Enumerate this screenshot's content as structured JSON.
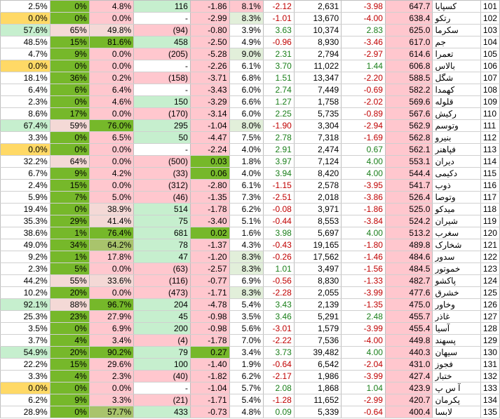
{
  "columns": [
    "pct_a",
    "pct_b",
    "pct_c",
    "count",
    "change",
    "pct_d",
    "delta",
    "volume",
    "ratio",
    "price",
    "name",
    "index"
  ],
  "colors": {
    "green_dark": "#76b82a",
    "green_light": "#c6efce",
    "red_light": "#ffc7ce",
    "yellow": "#ffd966",
    "olive": "#a9c46c",
    "pink_pale": "#f4d9d6",
    "green_pale": "#e2efda",
    "white": "#ffffff"
  },
  "rows": [
    {
      "cells": [
        "2.5%",
        "0%",
        "4.8%",
        "116",
        "-1.86",
        "8.1%",
        "-2.12",
        "2,631",
        "-3.98",
        "647.7",
        "کسپایا",
        "101"
      ],
      "fills": [
        "w",
        "gd",
        "r",
        "gl",
        "r",
        "r",
        "w",
        "w",
        "w",
        "r",
        "w",
        "w"
      ]
    },
    {
      "cells": [
        "0.0%",
        "0%",
        "0.0%",
        "-",
        "-2.99",
        "8.3%",
        "-1.01",
        "13,670",
        "-4.00",
        "638.4",
        "رتکو",
        "102"
      ],
      "fills": [
        "y",
        "gd",
        "r",
        "w",
        "r",
        "gp",
        "w",
        "w",
        "w",
        "r",
        "w",
        "w"
      ]
    },
    {
      "cells": [
        "57.6%",
        "65%",
        "49.8%",
        "(94)",
        "-0.80",
        "3.9%",
        "3.63",
        "10,374",
        "2.83",
        "625.0",
        "سکرما",
        "103"
      ],
      "fills": [
        "gl",
        "pp",
        "pp",
        "r",
        "r",
        "w",
        "w",
        "w",
        "w",
        "r",
        "w",
        "w"
      ]
    },
    {
      "cells": [
        "48.5%",
        "15%",
        "81.6%",
        "458",
        "-2.50",
        "4.9%",
        "-0.96",
        "8,930",
        "-3.46",
        "617.0",
        "جم",
        "104"
      ],
      "fills": [
        "w",
        "gd",
        "gd",
        "gl",
        "r",
        "w",
        "w",
        "w",
        "w",
        "r",
        "w",
        "w"
      ]
    },
    {
      "cells": [
        "4.7%",
        "9%",
        "0.0%",
        "(205)",
        "-5.28",
        "9.0%",
        "2.31",
        "2,794",
        "-2.97",
        "614.6",
        "تعمرا",
        "105"
      ],
      "fills": [
        "w",
        "gd",
        "r",
        "r",
        "r",
        "gp",
        "w",
        "w",
        "w",
        "r",
        "w",
        "w"
      ]
    },
    {
      "cells": [
        "0.0%",
        "0%",
        "0.0%",
        "-",
        "-2.26",
        "6.1%",
        "3.70",
        "11,022",
        "1.44",
        "606.8",
        "بالاس",
        "106"
      ],
      "fills": [
        "y",
        "gd",
        "r",
        "w",
        "r",
        "w",
        "w",
        "w",
        "w",
        "r",
        "w",
        "w"
      ]
    },
    {
      "cells": [
        "18.1%",
        "36%",
        "0.2%",
        "(158)",
        "-3.71",
        "6.8%",
        "1.51",
        "13,347",
        "-2.20",
        "588.5",
        "شگل",
        "107"
      ],
      "fills": [
        "w",
        "gd",
        "r",
        "r",
        "r",
        "w",
        "w",
        "w",
        "w",
        "r",
        "w",
        "w"
      ]
    },
    {
      "cells": [
        "6.4%",
        "6%",
        "6.4%",
        "-",
        "-3.43",
        "6.0%",
        "2.74",
        "7,449",
        "-0.69",
        "582.2",
        "کهمدا",
        "108"
      ],
      "fills": [
        "w",
        "gd",
        "r",
        "w",
        "r",
        "w",
        "w",
        "w",
        "w",
        "r",
        "w",
        "w"
      ]
    },
    {
      "cells": [
        "2.3%",
        "0%",
        "4.6%",
        "150",
        "-3.29",
        "6.6%",
        "1.27",
        "1,758",
        "-2.02",
        "569.6",
        "قلوله",
        "109"
      ],
      "fills": [
        "w",
        "gd",
        "r",
        "gl",
        "r",
        "w",
        "w",
        "w",
        "w",
        "r",
        "w",
        "w"
      ]
    },
    {
      "cells": [
        "8.6%",
        "17%",
        "0.0%",
        "(170)",
        "-3.14",
        "6.0%",
        "2.25",
        "5,735",
        "-0.89",
        "567.6",
        "رکیش",
        "110"
      ],
      "fills": [
        "w",
        "gd",
        "r",
        "r",
        "r",
        "w",
        "w",
        "w",
        "w",
        "r",
        "w",
        "w"
      ]
    },
    {
      "cells": [
        "67.4%",
        "59%",
        "76.0%",
        "295",
        "-1.04",
        "8.0%",
        "-1.90",
        "3,304",
        "-2.94",
        "562.9",
        "وتوسم",
        "111"
      ],
      "fills": [
        "gl",
        "pp",
        "gd",
        "gl",
        "r",
        "gp",
        "w",
        "w",
        "w",
        "r",
        "w",
        "w"
      ]
    },
    {
      "cells": [
        "3.3%",
        "0%",
        "6.5%",
        "50",
        "-4.47",
        "7.5%",
        "2.78",
        "7,318",
        "-1.69",
        "562.8",
        "بنیرو",
        "112"
      ],
      "fills": [
        "w",
        "gd",
        "r",
        "gl",
        "r",
        "w",
        "w",
        "w",
        "w",
        "r",
        "w",
        "w"
      ]
    },
    {
      "cells": [
        "0.0%",
        "0%",
        "0.0%",
        "-",
        "-2.24",
        "4.0%",
        "2.91",
        "2,474",
        "0.67",
        "562.1",
        "فپاهنر",
        "113"
      ],
      "fills": [
        "y",
        "gd",
        "r",
        "w",
        "r",
        "w",
        "w",
        "w",
        "w",
        "r",
        "w",
        "w"
      ]
    },
    {
      "cells": [
        "32.2%",
        "64%",
        "0.0%",
        "(500)",
        "0.03",
        "1.8%",
        "3.97",
        "7,124",
        "4.00",
        "553.1",
        "دیران",
        "114"
      ],
      "fills": [
        "w",
        "pp",
        "r",
        "r",
        "gd",
        "w",
        "w",
        "w",
        "w",
        "r",
        "w",
        "w"
      ]
    },
    {
      "cells": [
        "6.7%",
        "9%",
        "4.2%",
        "(33)",
        "0.06",
        "4.0%",
        "3.94",
        "8,420",
        "4.00",
        "544.4",
        "دکیمی",
        "115"
      ],
      "fills": [
        "w",
        "gd",
        "r",
        "r",
        "gd",
        "w",
        "w",
        "w",
        "w",
        "r",
        "w",
        "w"
      ]
    },
    {
      "cells": [
        "2.4%",
        "15%",
        "0.0%",
        "(312)",
        "-2.80",
        "6.1%",
        "-1.15",
        "2,578",
        "-3.95",
        "541.7",
        "ذوب",
        "116"
      ],
      "fills": [
        "w",
        "gd",
        "r",
        "r",
        "r",
        "w",
        "w",
        "w",
        "w",
        "r",
        "w",
        "w"
      ]
    },
    {
      "cells": [
        "5.9%",
        "7%",
        "5.0%",
        "(46)",
        "-1.35",
        "7.3%",
        "-2.51",
        "2,018",
        "-3.86",
        "526.4",
        "وتوصا",
        "117"
      ],
      "fills": [
        "w",
        "gd",
        "r",
        "r",
        "r",
        "w",
        "w",
        "w",
        "w",
        "r",
        "w",
        "w"
      ]
    },
    {
      "cells": [
        "19.4%",
        "0%",
        "38.9%",
        "514",
        "-1.78",
        "6.2%",
        "-0.08",
        "3,971",
        "-1.86",
        "525.0",
        "میدکو",
        "118"
      ],
      "fills": [
        "w",
        "gd",
        "pp",
        "gl",
        "r",
        "w",
        "w",
        "w",
        "w",
        "r",
        "w",
        "w"
      ]
    },
    {
      "cells": [
        "35.3%",
        "29%",
        "41.4%",
        "75",
        "-3.40",
        "5.1%",
        "-0.44",
        "8,553",
        "-3.84",
        "524.2",
        "شیران",
        "119"
      ],
      "fills": [
        "w",
        "gd",
        "pp",
        "gl",
        "r",
        "w",
        "w",
        "w",
        "w",
        "r",
        "w",
        "w"
      ]
    },
    {
      "cells": [
        "38.6%",
        "1%",
        "76.4%",
        "681",
        "0.02",
        "1.6%",
        "3.98",
        "5,697",
        "4.00",
        "513.2",
        "سغرب",
        "120"
      ],
      "fills": [
        "w",
        "gd",
        "gd",
        "gl",
        "gd",
        "w",
        "w",
        "w",
        "w",
        "r",
        "w",
        "w"
      ]
    },
    {
      "cells": [
        "49.0%",
        "34%",
        "64.2%",
        "78",
        "-1.37",
        "4.3%",
        "-0.43",
        "19,165",
        "-1.80",
        "489.8",
        "شخارک",
        "121"
      ],
      "fills": [
        "w",
        "gd",
        "ol",
        "gl",
        "r",
        "w",
        "w",
        "w",
        "w",
        "r",
        "w",
        "w"
      ]
    },
    {
      "cells": [
        "9.2%",
        "1%",
        "17.8%",
        "47",
        "-1.20",
        "8.3%",
        "-0.26",
        "17,562",
        "-1.46",
        "484.6",
        "سدور",
        "122"
      ],
      "fills": [
        "w",
        "gd",
        "r",
        "gl",
        "r",
        "gp",
        "w",
        "w",
        "w",
        "r",
        "w",
        "w"
      ]
    },
    {
      "cells": [
        "2.3%",
        "5%",
        "0.0%",
        "(63)",
        "-2.57",
        "8.3%",
        "1.01",
        "3,497",
        "-1.56",
        "484.5",
        "خموتور",
        "123"
      ],
      "fills": [
        "w",
        "gd",
        "r",
        "r",
        "r",
        "gp",
        "w",
        "w",
        "w",
        "r",
        "w",
        "w"
      ]
    },
    {
      "cells": [
        "44.2%",
        "55%",
        "33.6%",
        "(116)",
        "-0.77",
        "6.9%",
        "-0.56",
        "8,830",
        "-1.33",
        "482.7",
        "پاکشو",
        "124"
      ],
      "fills": [
        "w",
        "pp",
        "pp",
        "r",
        "r",
        "w",
        "w",
        "w",
        "w",
        "r",
        "w",
        "w"
      ]
    },
    {
      "cells": [
        "10.2%",
        "20%",
        "0.0%",
        "(473)",
        "-1.71",
        "8.3%",
        "-2.28",
        "2,055",
        "-3.99",
        "477.6",
        "خشرق",
        "125"
      ],
      "fills": [
        "w",
        "gd",
        "r",
        "r",
        "r",
        "gp",
        "w",
        "w",
        "w",
        "r",
        "w",
        "w"
      ]
    },
    {
      "cells": [
        "92.1%",
        "88%",
        "96.7%",
        "204",
        "-4.78",
        "5.4%",
        "3.43",
        "2,139",
        "-1.35",
        "475.0",
        "وخاور",
        "126"
      ],
      "fills": [
        "gl",
        "pp",
        "gd",
        "gl",
        "r",
        "w",
        "w",
        "w",
        "w",
        "r",
        "w",
        "w"
      ]
    },
    {
      "cells": [
        "25.3%",
        "23%",
        "27.9%",
        "45",
        "-0.98",
        "3.5%",
        "3.46",
        "5,291",
        "2.48",
        "455.7",
        "غاذر",
        "127"
      ],
      "fills": [
        "w",
        "gd",
        "r",
        "gl",
        "r",
        "w",
        "w",
        "w",
        "w",
        "r",
        "w",
        "w"
      ]
    },
    {
      "cells": [
        "3.5%",
        "0%",
        "6.9%",
        "200",
        "-0.98",
        "5.6%",
        "-3.01",
        "1,579",
        "-3.99",
        "455.4",
        "آسیا",
        "128"
      ],
      "fills": [
        "w",
        "gd",
        "r",
        "gl",
        "r",
        "w",
        "w",
        "w",
        "w",
        "r",
        "w",
        "w"
      ]
    },
    {
      "cells": [
        "3.7%",
        "4%",
        "3.4%",
        "(4)",
        "-1.78",
        "7.0%",
        "-2.22",
        "7,536",
        "-4.00",
        "449.8",
        "پسهند",
        "129"
      ],
      "fills": [
        "w",
        "gd",
        "r",
        "r",
        "r",
        "w",
        "w",
        "w",
        "w",
        "r",
        "w",
        "w"
      ]
    },
    {
      "cells": [
        "54.9%",
        "20%",
        "90.2%",
        "79",
        "0.27",
        "3.4%",
        "3.73",
        "39,482",
        "4.00",
        "440.3",
        "سیهان",
        "130"
      ],
      "fills": [
        "gl",
        "gd",
        "gd",
        "gl",
        "gd",
        "w",
        "w",
        "w",
        "w",
        "r",
        "w",
        "w"
      ]
    },
    {
      "cells": [
        "22.2%",
        "15%",
        "29.6%",
        "100",
        "-1.40",
        "1.9%",
        "-0.64",
        "6,542",
        "-2.04",
        "431.0",
        "فجوز",
        "131"
      ],
      "fills": [
        "w",
        "gd",
        "r",
        "gl",
        "r",
        "w",
        "w",
        "w",
        "w",
        "r",
        "w",
        "w"
      ]
    },
    {
      "cells": [
        "3.3%",
        "4%",
        "2.3%",
        "(40)",
        "-1.82",
        "6.2%",
        "-2.17",
        "1,986",
        "-3.99",
        "427.4",
        "ختبار",
        "132"
      ],
      "fills": [
        "w",
        "gd",
        "r",
        "r",
        "r",
        "w",
        "w",
        "w",
        "w",
        "r",
        "w",
        "w"
      ]
    },
    {
      "cells": [
        "0.0%",
        "0%",
        "0.0%",
        "-",
        "-1.04",
        "5.7%",
        "2.08",
        "1,868",
        "1.04",
        "423.9",
        "آ س پ",
        "133"
      ],
      "fills": [
        "y",
        "gd",
        "r",
        "w",
        "r",
        "w",
        "w",
        "w",
        "w",
        "r",
        "w",
        "w"
      ]
    },
    {
      "cells": [
        "6.2%",
        "9%",
        "3.3%",
        "(21)",
        "-1.71",
        "5.4%",
        "-1.28",
        "11,652",
        "-2.99",
        "420.7",
        "پکرمان",
        "134"
      ],
      "fills": [
        "w",
        "gd",
        "r",
        "r",
        "r",
        "w",
        "w",
        "w",
        "w",
        "r",
        "w",
        "w"
      ]
    },
    {
      "cells": [
        "28.9%",
        "0%",
        "57.7%",
        "433",
        "-0.73",
        "4.8%",
        "0.09",
        "5,339",
        "-0.64",
        "400.4",
        "لابسا",
        "135"
      ],
      "fills": [
        "w",
        "gd",
        "ol",
        "gl",
        "r",
        "w",
        "w",
        "w",
        "w",
        "r",
        "w",
        "w"
      ]
    }
  ]
}
